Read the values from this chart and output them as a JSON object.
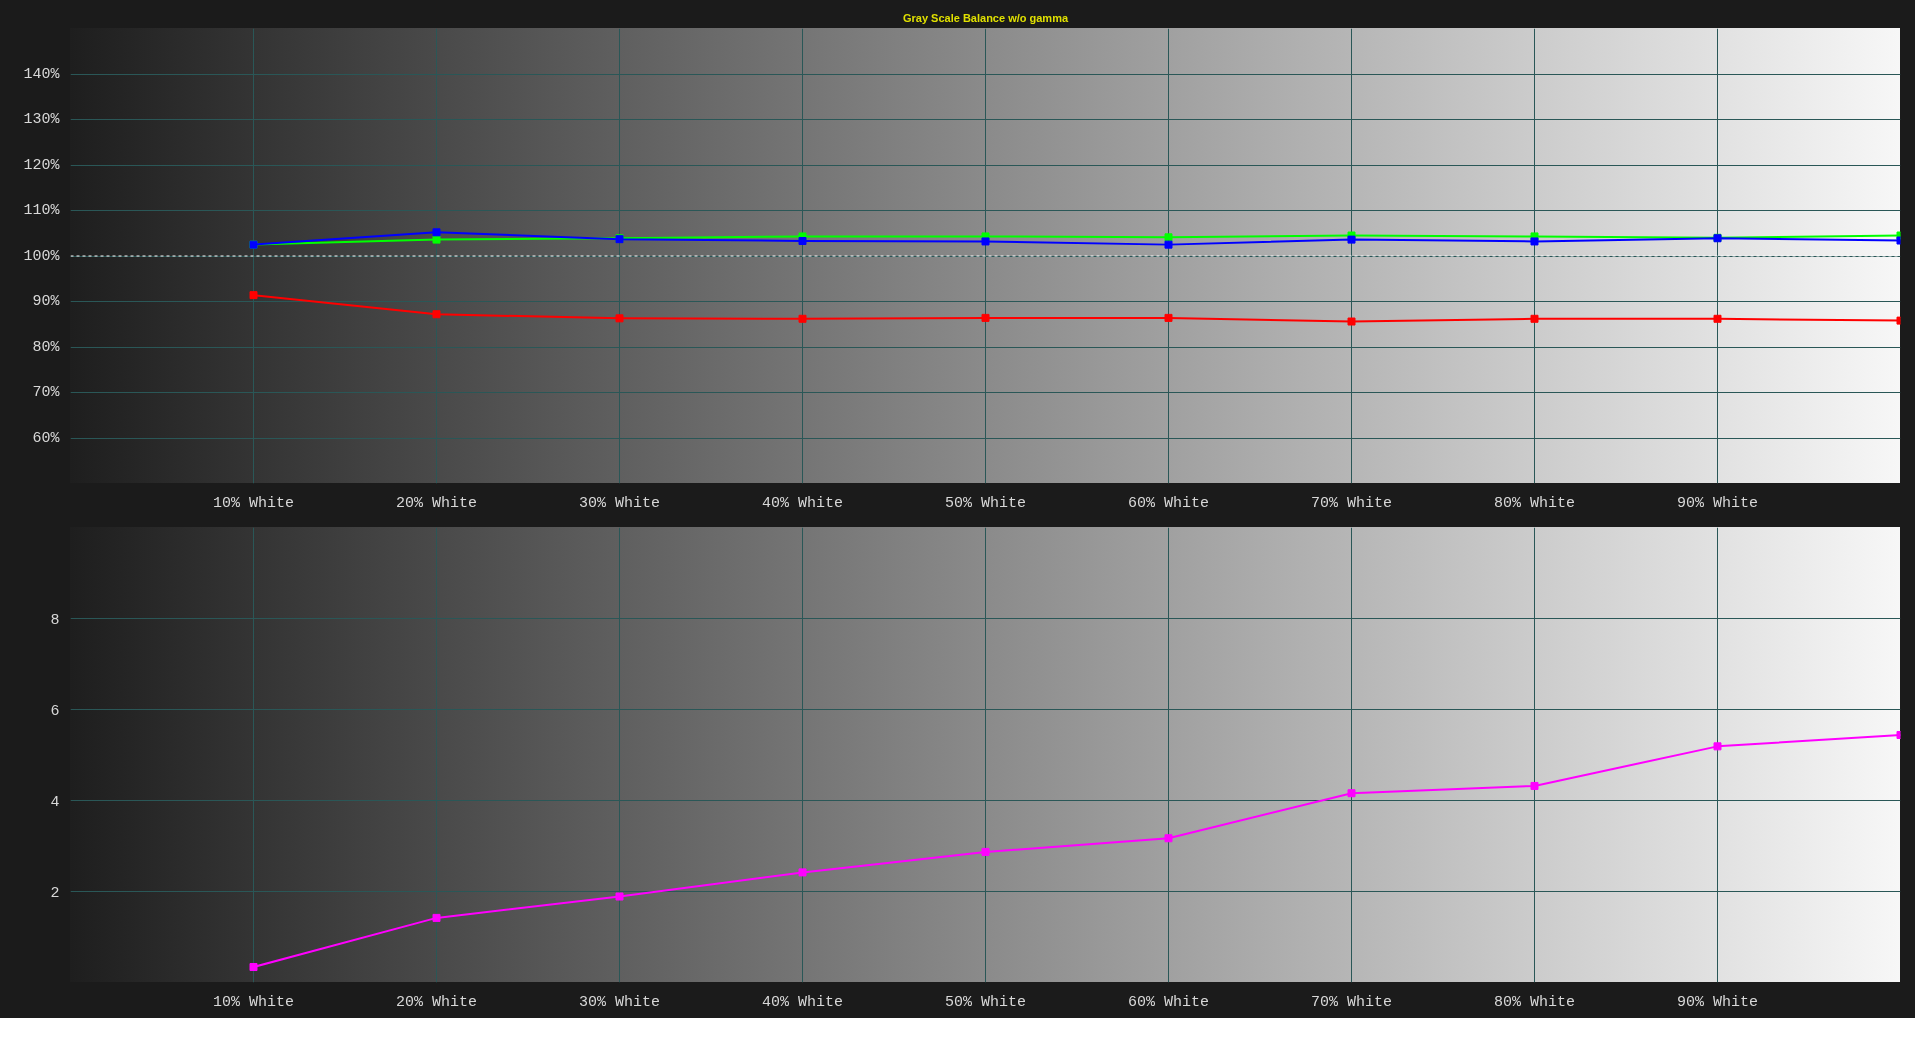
{
  "chart_data": [
    {
      "type": "line",
      "title": "Gray Scale Balance w/o gamma",
      "x": [
        10,
        20,
        30,
        40,
        50,
        60,
        70,
        80,
        90,
        100
      ],
      "series": [
        {
          "color": "#ff0000",
          "values": [
            91.4,
            87.2,
            86.3,
            86.2,
            86.4,
            86.4,
            85.6,
            86.2,
            86.2,
            85.8
          ]
        },
        {
          "color": "#00ff00",
          "values": [
            102.5,
            103.6,
            103.9,
            104.3,
            104.3,
            104.1,
            104.5,
            104.3,
            104.0,
            104.5
          ]
        },
        {
          "color": "#0000ff",
          "values": [
            102.5,
            105.2,
            103.7,
            103.3,
            103.2,
            102.5,
            103.6,
            103.2,
            103.9,
            103.4
          ]
        }
      ],
      "xlim": [
        0,
        100
      ],
      "xticks": [
        {
          "value": 10,
          "label": "10% White"
        },
        {
          "value": 20,
          "label": "20% White"
        },
        {
          "value": 30,
          "label": "30% White"
        },
        {
          "value": 40,
          "label": "40% White"
        },
        {
          "value": 50,
          "label": "50% White"
        },
        {
          "value": 60,
          "label": "60% White"
        },
        {
          "value": 70,
          "label": "70% White"
        },
        {
          "value": 80,
          "label": "80% White"
        },
        {
          "value": 90,
          "label": "90% White"
        }
      ],
      "ylim": [
        50,
        150
      ],
      "yticks": [
        {
          "value": 60,
          "label": "60%"
        },
        {
          "value": 70,
          "label": "70%"
        },
        {
          "value": 80,
          "label": "80%"
        },
        {
          "value": 90,
          "label": "90%"
        },
        {
          "value": 100,
          "label": "100%"
        },
        {
          "value": 110,
          "label": "110%"
        },
        {
          "value": 120,
          "label": "120%"
        },
        {
          "value": 130,
          "label": "130%"
        },
        {
          "value": 140,
          "label": "140%"
        }
      ],
      "ref_lines": [
        {
          "axis": "y",
          "value": 100,
          "color": "#ffffff",
          "line_style": "dashed"
        }
      ],
      "grid": true,
      "marker": "square",
      "line_style": "solid"
    },
    {
      "type": "line",
      "x": [
        10,
        20,
        30,
        40,
        50,
        60,
        70,
        80,
        90,
        100
      ],
      "series": [
        {
          "color": "#ff00ff",
          "values": [
            0.34,
            1.42,
            1.89,
            2.42,
            2.87,
            3.17,
            4.16,
            4.32,
            5.19,
            5.44
          ]
        }
      ],
      "xlim": [
        0,
        100
      ],
      "xticks": [
        {
          "value": 10,
          "label": "10% White"
        },
        {
          "value": 20,
          "label": "20% White"
        },
        {
          "value": 30,
          "label": "30% White"
        },
        {
          "value": 40,
          "label": "40% White"
        },
        {
          "value": 50,
          "label": "50% White"
        },
        {
          "value": 60,
          "label": "60% White"
        },
        {
          "value": 70,
          "label": "70% White"
        },
        {
          "value": 80,
          "label": "80% White"
        },
        {
          "value": 90,
          "label": "90% White"
        }
      ],
      "ylim": [
        0,
        10
      ],
      "yticks": [
        2,
        4,
        6,
        8
      ],
      "grid": true,
      "marker": "square",
      "line_style": "solid"
    }
  ]
}
